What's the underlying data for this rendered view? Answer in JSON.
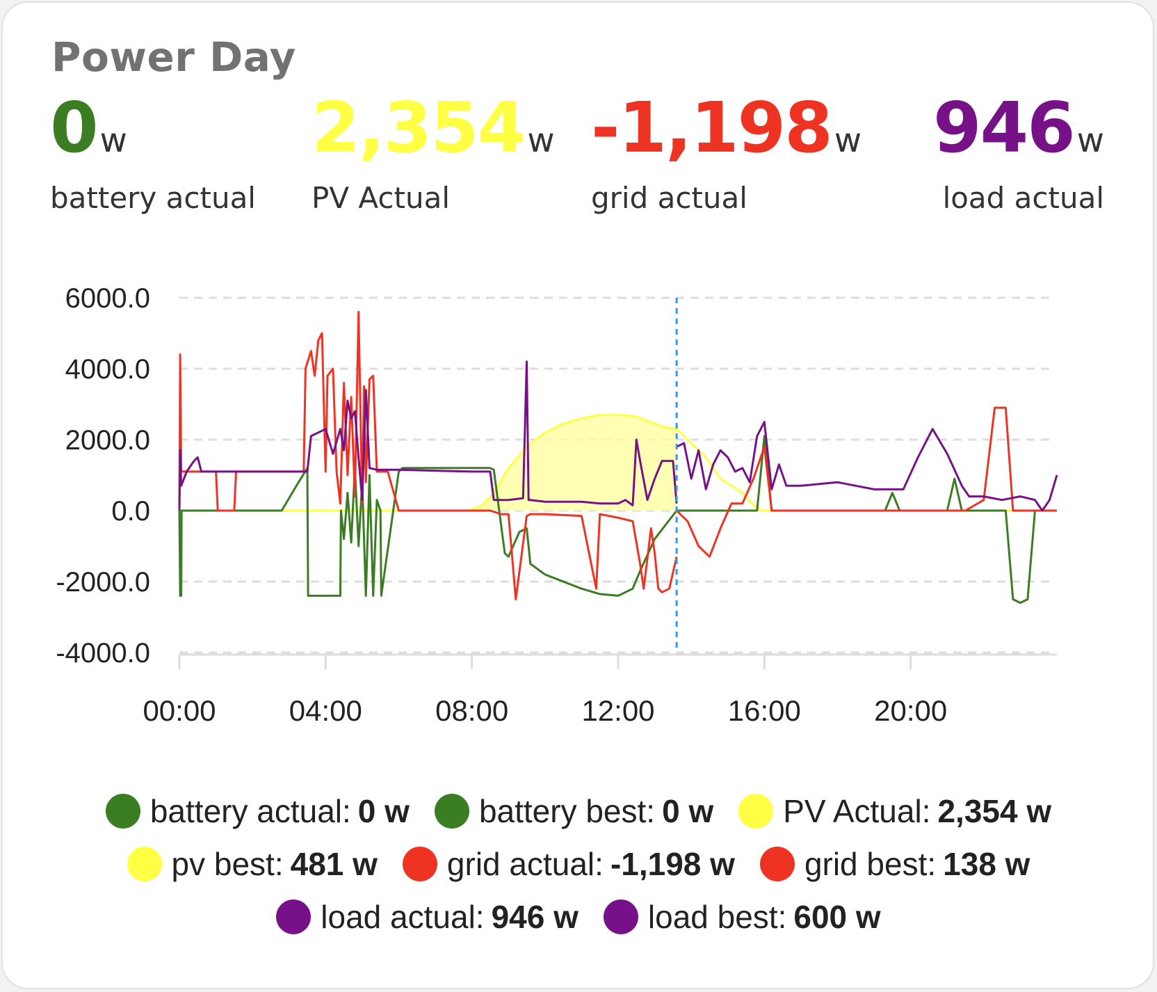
{
  "card": {
    "title": "Power Day"
  },
  "stats": [
    {
      "value": "0",
      "unit": "w",
      "label": "battery actual",
      "color": "#3a7d22"
    },
    {
      "value": "2,354",
      "unit": "w",
      "label": "PV Actual",
      "color": "#ffff44"
    },
    {
      "value": "-1,198",
      "unit": "w",
      "label": "grid actual",
      "color": "#ee3322"
    },
    {
      "value": "946",
      "unit": "w",
      "label": "load actual",
      "color": "#771188"
    }
  ],
  "legend": [
    {
      "label": "battery actual:",
      "value": "0 w",
      "color": "#3a7d22"
    },
    {
      "label": "battery best:",
      "value": "0 w",
      "color": "#3a7d22"
    },
    {
      "label": "PV Actual:",
      "value": "2,354 w",
      "color": "#ffff44"
    },
    {
      "label": "pv best:",
      "value": "481 w",
      "color": "#ffff44"
    },
    {
      "label": "grid actual:",
      "value": "-1,198 w",
      "color": "#ee3322"
    },
    {
      "label": "grid best:",
      "value": "138 w",
      "color": "#ee3322"
    },
    {
      "label": "load actual:",
      "value": "946 w",
      "color": "#771188"
    },
    {
      "label": "load best:",
      "value": "600 w",
      "color": "#771188"
    }
  ],
  "chart_data": {
    "type": "line",
    "x_unit": "hours",
    "xlim": [
      0,
      24
    ],
    "ylim": [
      -4000,
      6000
    ],
    "y_ticks": [
      "6000.0",
      "4000.0",
      "2000.0",
      "0.0",
      "-2000.0",
      "-4000.0"
    ],
    "y_tick_values": [
      6000,
      4000,
      2000,
      0,
      -2000,
      -4000
    ],
    "x_ticks": [
      "00:00",
      "04:00",
      "08:00",
      "12:00",
      "16:00",
      "20:00"
    ],
    "x_tick_values": [
      0,
      4,
      8,
      12,
      16,
      20
    ],
    "now_time": 13.6,
    "grid": true,
    "series": [
      {
        "name": "PV Actual",
        "color": "#ffff44",
        "fill": "#ffff99",
        "x": [
          0,
          7.9,
          8.3,
          8.6,
          9,
          9.5,
          10,
          10.5,
          11,
          11.5,
          12,
          12.5,
          13,
          13.3,
          13.6
        ],
        "y": [
          0,
          0,
          150,
          500,
          1200,
          1800,
          2200,
          2450,
          2600,
          2700,
          2700,
          2650,
          2450,
          2350,
          2300
        ]
      },
      {
        "name": "pv best",
        "color": "#ffff44",
        "x": [
          13.6,
          14,
          14.4,
          14.8,
          15.1,
          15.4,
          15.7,
          15.9,
          16.2,
          24
        ],
        "y": [
          2300,
          1900,
          1500,
          900,
          700,
          500,
          150,
          0,
          0,
          0
        ]
      },
      {
        "name": "battery actual",
        "color": "#3a7d22",
        "x": [
          0,
          0.02,
          0.05,
          0.06,
          2.8,
          3.2,
          3.5,
          3.52,
          3.6,
          4.4,
          4.42,
          4.5,
          4.6,
          4.7,
          4.8,
          4.9,
          5.0,
          5.1,
          5.2,
          5.3,
          5.4,
          5.5,
          5.52,
          6.0,
          6.1,
          8.5,
          8.6,
          8.9,
          9.0,
          9.3,
          9.5,
          9.6,
          10,
          11,
          11.5,
          12,
          12.4,
          12.6,
          13,
          13.6
        ],
        "y": [
          0,
          -2400,
          -2400,
          0,
          0,
          700,
          1200,
          -2400,
          -2400,
          -2400,
          0,
          -800,
          500,
          -900,
          1200,
          -1000,
          800,
          -2400,
          1000,
          -2400,
          300,
          0,
          -2400,
          1100,
          1200,
          1200,
          1150,
          -1200,
          -1300,
          -600,
          -500,
          -1500,
          -1800,
          -2200,
          -2350,
          -2400,
          -2200,
          -1700,
          -800,
          0
        ]
      },
      {
        "name": "battery best",
        "color": "#3a7d22",
        "x": [
          13.6,
          15.8,
          16.0,
          16.2,
          19.3,
          19.5,
          19.7,
          20,
          20.2,
          21.0,
          21.2,
          21.4,
          22.6,
          22.8,
          23.0,
          23.2,
          23.4,
          24
        ],
        "y": [
          0,
          0,
          2100,
          0,
          0,
          500,
          0,
          0,
          0,
          0,
          900,
          0,
          0,
          -2500,
          -2600,
          -2500,
          0,
          0
        ]
      },
      {
        "name": "grid actual",
        "color": "#ee3322",
        "x": [
          0,
          0.02,
          0.05,
          1.0,
          1.05,
          1.5,
          1.55,
          3.4,
          3.45,
          3.6,
          3.7,
          3.8,
          3.9,
          4.0,
          4.05,
          4.2,
          4.3,
          4.4,
          4.5,
          4.6,
          4.7,
          4.8,
          4.9,
          5.0,
          5.05,
          5.1,
          5.2,
          5.3,
          5.4,
          5.5,
          5.7,
          6.0,
          8.5,
          8.8,
          9.0,
          9.2,
          9.5,
          9.6,
          10,
          11,
          11.4,
          11.5,
          12,
          12.4,
          12.6,
          12.7,
          12.9,
          13,
          13.1,
          13.2,
          13.4,
          13.6
        ],
        "y": [
          0,
          4400,
          1100,
          1100,
          0,
          0,
          1100,
          1100,
          4000,
          4500,
          3800,
          4800,
          5000,
          1100,
          3800,
          4000,
          1100,
          200,
          3600,
          1000,
          3200,
          400,
          5600,
          200,
          3500,
          800,
          3700,
          3800,
          1100,
          1100,
          1100,
          0,
          0,
          -100,
          -100,
          -2500,
          -150,
          -100,
          -100,
          -150,
          -2200,
          -100,
          -200,
          -300,
          -1500,
          -2200,
          -500,
          -1200,
          -2200,
          -2300,
          -2200,
          -1300
        ]
      },
      {
        "name": "grid best",
        "color": "#ee3322",
        "x": [
          13.6,
          13.9,
          14.2,
          14.5,
          14.8,
          15.1,
          15.4,
          15.7,
          15.9,
          16.0,
          16.2,
          19.0,
          21.5,
          22.0,
          22.3,
          22.6,
          22.8,
          23.0,
          24
        ],
        "y": [
          0,
          -300,
          -1000,
          -1300,
          -500,
          200,
          200,
          900,
          1500,
          1800,
          0,
          0,
          0,
          300,
          2900,
          2900,
          0,
          0,
          0
        ]
      },
      {
        "name": "load actual",
        "color": "#771188",
        "x": [
          0,
          0.02,
          0.05,
          0.2,
          0.4,
          0.5,
          0.6,
          1.0,
          2.0,
          3.0,
          3.5,
          3.6,
          3.8,
          4.0,
          4.2,
          4.4,
          4.5,
          4.6,
          4.7,
          4.8,
          4.9,
          5.0,
          5.1,
          5.2,
          5.4,
          6.0,
          8.0,
          8.5,
          8.6,
          9.0,
          9.4,
          9.5,
          9.55,
          9.6,
          10,
          11,
          11.5,
          12,
          12.2,
          12.4,
          12.5,
          12.6,
          12.8,
          13.0,
          13.2,
          13.5,
          13.6
        ],
        "y": [
          0,
          1700,
          700,
          1100,
          1400,
          1500,
          1100,
          1100,
          1100,
          1100,
          1100,
          2100,
          2200,
          2300,
          1600,
          2300,
          1700,
          3100,
          2600,
          2800,
          1500,
          300,
          3400,
          1200,
          1150,
          1150,
          1100,
          1100,
          300,
          300,
          350,
          4200,
          300,
          300,
          250,
          250,
          200,
          200,
          300,
          150,
          2000,
          1400,
          300,
          900,
          1400,
          1400,
          200
        ]
      },
      {
        "name": "load best",
        "color": "#771188",
        "x": [
          13.6,
          13.8,
          14.0,
          14.2,
          14.4,
          14.6,
          14.8,
          15.0,
          15.2,
          15.4,
          15.6,
          15.8,
          16.0,
          16.2,
          16.4,
          16.6,
          17,
          18,
          18.5,
          19,
          19.5,
          19.8,
          20.2,
          20.6,
          21.0,
          21.4,
          21.6,
          22.0,
          22.5,
          23.0,
          23.4,
          23.6,
          23.8,
          24
        ],
        "y": [
          1800,
          1900,
          900,
          1700,
          600,
          1300,
          1700,
          1500,
          1100,
          1200,
          800,
          2100,
          2500,
          600,
          1300,
          700,
          700,
          800,
          700,
          600,
          600,
          600,
          1500,
          2300,
          1600,
          700,
          400,
          400,
          300,
          400,
          300,
          0,
          300,
          1000
        ]
      }
    ]
  }
}
